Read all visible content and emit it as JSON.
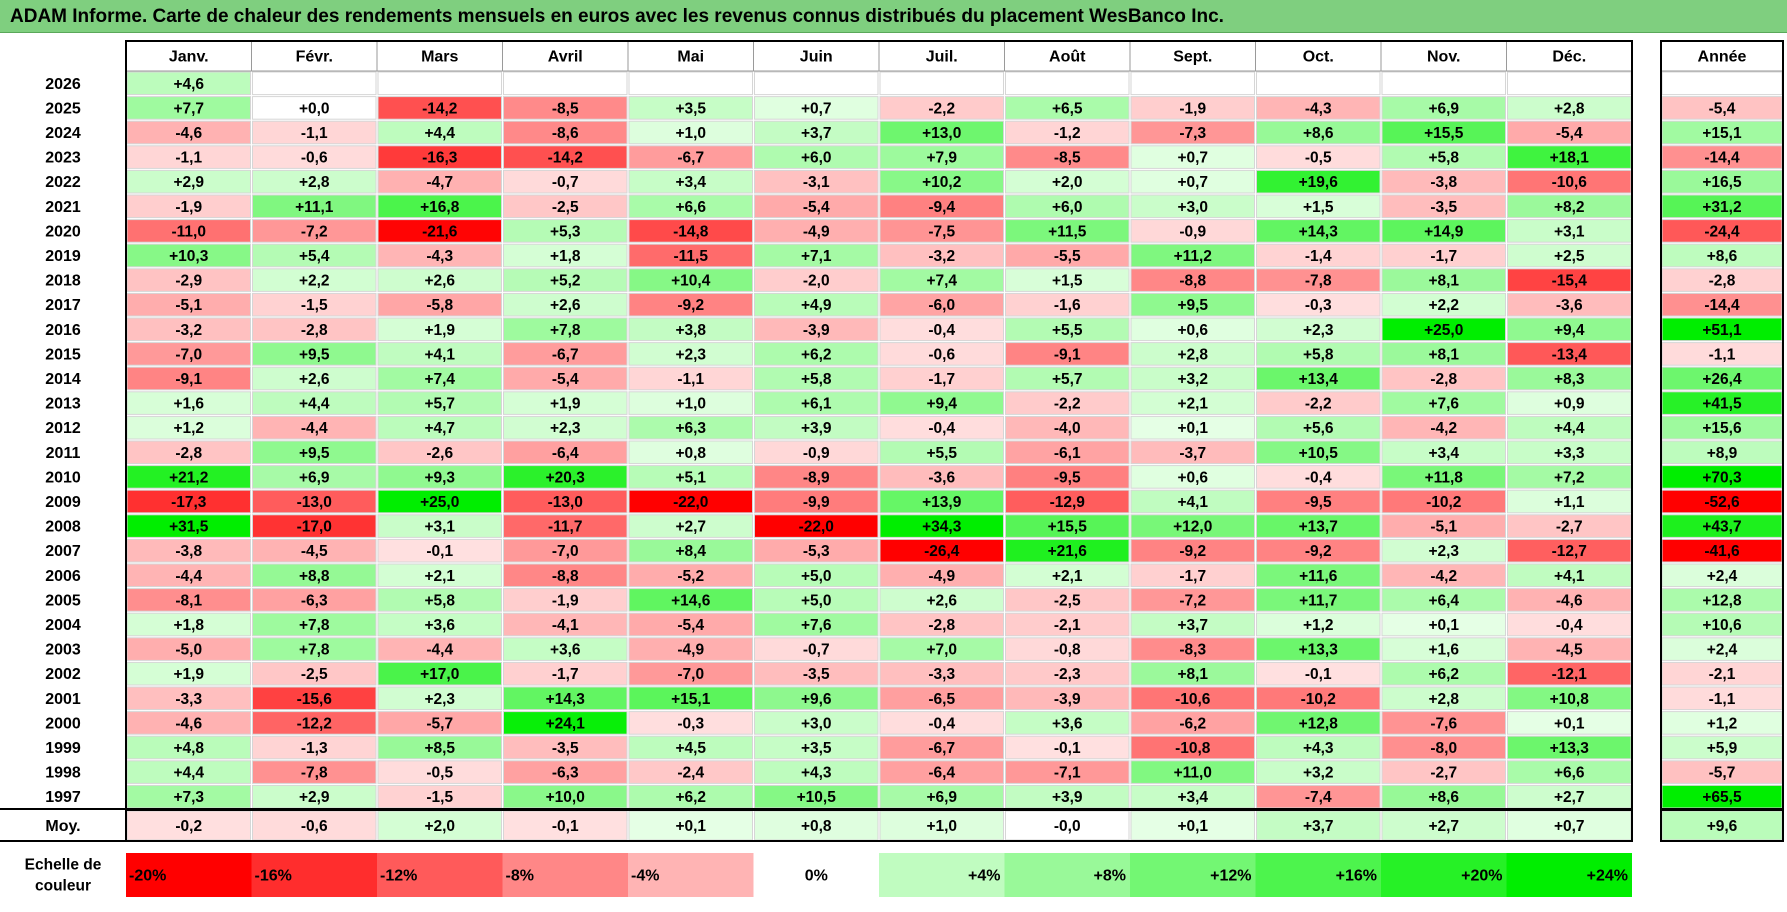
{
  "title": "ADAM Informe. Carte de chaleur des rendements mensuels en euros avec les revenus connus distribués du placement WesBanco Inc.",
  "colors": {
    "title_bar": "#7fcf7f",
    "max_red": "#ff0000",
    "max_green": "#00ee00",
    "neutral": "#ffffff"
  },
  "chart_data": {
    "type": "heatmap",
    "months": [
      "Janv.",
      "Févr.",
      "Mars",
      "Avril",
      "Mai",
      "Juin",
      "Juil.",
      "Août",
      "Sept.",
      "Oct.",
      "Nov.",
      "Déc."
    ],
    "year_header": "Année",
    "avg_label": "Moy.",
    "rows": [
      {
        "year": "2026",
        "values": [
          "+4,6",
          null,
          null,
          null,
          null,
          null,
          null,
          null,
          null,
          null,
          null,
          null
        ],
        "annual": null
      },
      {
        "year": "2025",
        "values": [
          "+7,7",
          "+0,0",
          "-14,2",
          "-8,5",
          "+3,5",
          "+0,7",
          "-2,2",
          "+6,5",
          "-1,9",
          "-4,3",
          "+6,9",
          "+2,8"
        ],
        "annual": "-5,4"
      },
      {
        "year": "2024",
        "values": [
          "-4,6",
          "-1,1",
          "+4,4",
          "-8,6",
          "+1,0",
          "+3,7",
          "+13,0",
          "-1,2",
          "-7,3",
          "+8,6",
          "+15,5",
          "-5,4"
        ],
        "annual": "+15,1"
      },
      {
        "year": "2023",
        "values": [
          "-1,1",
          "-0,6",
          "-16,3",
          "-14,2",
          "-6,7",
          "+6,0",
          "+7,9",
          "-8,5",
          "+0,7",
          "-0,5",
          "+5,8",
          "+18,1"
        ],
        "annual": "-14,4"
      },
      {
        "year": "2022",
        "values": [
          "+2,9",
          "+2,8",
          "-4,7",
          "-0,7",
          "+3,4",
          "-3,1",
          "+10,2",
          "+2,0",
          "+0,7",
          "+19,6",
          "-3,8",
          "-10,6"
        ],
        "annual": "+16,5"
      },
      {
        "year": "2021",
        "values": [
          "-1,9",
          "+11,1",
          "+16,8",
          "-2,5",
          "+6,6",
          "-5,4",
          "-9,4",
          "+6,0",
          "+3,0",
          "+1,5",
          "-3,5",
          "+8,2"
        ],
        "annual": "+31,2"
      },
      {
        "year": "2020",
        "values": [
          "-11,0",
          "-7,2",
          "-21,6",
          "+5,3",
          "-14,8",
          "-4,9",
          "-7,5",
          "+11,5",
          "-0,9",
          "+14,3",
          "+14,9",
          "+3,1"
        ],
        "annual": "-24,4"
      },
      {
        "year": "2019",
        "values": [
          "+10,3",
          "+5,4",
          "-4,3",
          "+1,8",
          "-11,5",
          "+7,1",
          "-3,2",
          "-5,5",
          "+11,2",
          "-1,4",
          "-1,7",
          "+2,5"
        ],
        "annual": "+8,6"
      },
      {
        "year": "2018",
        "values": [
          "-2,9",
          "+2,2",
          "+2,6",
          "+5,2",
          "+10,4",
          "-2,0",
          "+7,4",
          "+1,5",
          "-8,8",
          "-7,8",
          "+8,1",
          "-15,4"
        ],
        "annual": "-2,8"
      },
      {
        "year": "2017",
        "values": [
          "-5,1",
          "-1,5",
          "-5,8",
          "+2,6",
          "-9,2",
          "+4,9",
          "-6,0",
          "-1,6",
          "+9,5",
          "-0,3",
          "+2,2",
          "-3,6"
        ],
        "annual": "-14,4"
      },
      {
        "year": "2016",
        "values": [
          "-3,2",
          "-2,8",
          "+1,9",
          "+7,8",
          "+3,8",
          "-3,9",
          "-0,4",
          "+5,5",
          "+0,6",
          "+2,3",
          "+25,0",
          "+9,4"
        ],
        "annual": "+51,1"
      },
      {
        "year": "2015",
        "values": [
          "-7,0",
          "+9,5",
          "+4,1",
          "-6,7",
          "+2,3",
          "+6,2",
          "-0,6",
          "-9,1",
          "+2,8",
          "+5,8",
          "+8,1",
          "-13,4"
        ],
        "annual": "-1,1"
      },
      {
        "year": "2014",
        "values": [
          "-9,1",
          "+2,6",
          "+7,4",
          "-5,4",
          "-1,1",
          "+5,8",
          "-1,7",
          "+5,7",
          "+3,2",
          "+13,4",
          "-2,8",
          "+8,3"
        ],
        "annual": "+26,4"
      },
      {
        "year": "2013",
        "values": [
          "+1,6",
          "+4,4",
          "+5,7",
          "+1,9",
          "+1,0",
          "+6,1",
          "+9,4",
          "-2,2",
          "+2,1",
          "-2,2",
          "+7,6",
          "+0,9"
        ],
        "annual": "+41,5"
      },
      {
        "year": "2012",
        "values": [
          "+1,2",
          "-4,4",
          "+4,7",
          "+2,3",
          "+6,3",
          "+3,9",
          "-0,4",
          "-4,0",
          "+0,1",
          "+5,6",
          "-4,2",
          "+4,4"
        ],
        "annual": "+15,6"
      },
      {
        "year": "2011",
        "values": [
          "-2,8",
          "+9,5",
          "-2,6",
          "-6,4",
          "+0,8",
          "-0,9",
          "+5,5",
          "-6,1",
          "-3,7",
          "+10,5",
          "+3,4",
          "+3,3"
        ],
        "annual": "+8,9"
      },
      {
        "year": "2010",
        "values": [
          "+21,2",
          "+6,9",
          "+9,3",
          "+20,3",
          "+5,1",
          "-8,9",
          "-3,6",
          "-9,5",
          "+0,6",
          "-0,4",
          "+11,8",
          "+7,2"
        ],
        "annual": "+70,3"
      },
      {
        "year": "2009",
        "values": [
          "-17,3",
          "-13,0",
          "+25,0",
          "-13,0",
          "-22,0",
          "-9,9",
          "+13,9",
          "-12,9",
          "+4,1",
          "-9,5",
          "-10,2",
          "+1,1"
        ],
        "annual": "-52,6"
      },
      {
        "year": "2008",
        "values": [
          "+31,5",
          "-17,0",
          "+3,1",
          "-11,7",
          "+2,7",
          "-22,0",
          "+34,3",
          "+15,5",
          "+12,0",
          "+13,7",
          "-5,1",
          "-2,7"
        ],
        "annual": "+43,7"
      },
      {
        "year": "2007",
        "values": [
          "-3,8",
          "-4,5",
          "-0,1",
          "-7,0",
          "+8,4",
          "-5,3",
          "-26,4",
          "+21,6",
          "-9,2",
          "-9,2",
          "+2,3",
          "-12,7"
        ],
        "annual": "-41,6"
      },
      {
        "year": "2006",
        "values": [
          "-4,4",
          "+8,8",
          "+2,1",
          "-8,8",
          "-5,2",
          "+5,0",
          "-4,9",
          "+2,1",
          "-1,7",
          "+11,6",
          "-4,2",
          "+4,1"
        ],
        "annual": "+2,4"
      },
      {
        "year": "2005",
        "values": [
          "-8,1",
          "-6,3",
          "+5,8",
          "-1,9",
          "+14,6",
          "+5,0",
          "+2,6",
          "-2,5",
          "-7,2",
          "+11,7",
          "+6,4",
          "-4,6"
        ],
        "annual": "+12,8"
      },
      {
        "year": "2004",
        "values": [
          "+1,8",
          "+7,8",
          "+3,6",
          "-4,1",
          "-5,4",
          "+7,6",
          "-2,8",
          "-2,1",
          "+3,7",
          "+1,2",
          "+0,1",
          "-0,4"
        ],
        "annual": "+10,6"
      },
      {
        "year": "2003",
        "values": [
          "-5,0",
          "+7,8",
          "-4,4",
          "+3,6",
          "-4,9",
          "-0,7",
          "+7,0",
          "-0,8",
          "-8,3",
          "+13,3",
          "+1,6",
          "-4,5"
        ],
        "annual": "+2,4"
      },
      {
        "year": "2002",
        "values": [
          "+1,9",
          "-2,5",
          "+17,0",
          "-1,7",
          "-7,0",
          "-3,5",
          "-3,3",
          "-2,3",
          "+8,1",
          "-0,1",
          "+6,2",
          "-12,1"
        ],
        "annual": "-2,1"
      },
      {
        "year": "2001",
        "values": [
          "-3,3",
          "-15,6",
          "+2,3",
          "+14,3",
          "+15,1",
          "+9,6",
          "-6,5",
          "-3,9",
          "-10,6",
          "-10,2",
          "+2,8",
          "+10,8"
        ],
        "annual": "-1,1"
      },
      {
        "year": "2000",
        "values": [
          "-4,6",
          "-12,2",
          "-5,7",
          "+24,1",
          "-0,3",
          "+3,0",
          "-0,4",
          "+3,6",
          "-6,2",
          "+12,8",
          "-7,6",
          "+0,1"
        ],
        "annual": "+1,2"
      },
      {
        "year": "1999",
        "values": [
          "+4,8",
          "-1,3",
          "+8,5",
          "-3,5",
          "+4,5",
          "+3,5",
          "-6,7",
          "-0,1",
          "-10,8",
          "+4,3",
          "-8,0",
          "+13,3"
        ],
        "annual": "+5,9"
      },
      {
        "year": "1998",
        "values": [
          "+4,4",
          "-7,8",
          "-0,5",
          "-6,3",
          "-2,4",
          "+4,3",
          "-6,4",
          "-7,1",
          "+11,0",
          "+3,2",
          "-2,7",
          "+6,6"
        ],
        "annual": "-5,7"
      },
      {
        "year": "1997",
        "values": [
          "+7,3",
          "+2,9",
          "-1,5",
          "+10,0",
          "+6,2",
          "+10,5",
          "+6,9",
          "+3,9",
          "+3,4",
          "-7,4",
          "+8,6",
          "+2,7"
        ],
        "annual": "+65,5"
      }
    ],
    "averages": [
      "-0,2",
      "-0,6",
      "+2,0",
      "-0,1",
      "+0,1",
      "+0,8",
      "+1,0",
      "-0,0",
      "+0,1",
      "+3,7",
      "+2,7",
      "+0,7"
    ],
    "average_annual": "+9,6",
    "scale_label": "Echelle de couleur",
    "scale": [
      {
        "label": "-20%",
        "value": -20
      },
      {
        "label": "-16%",
        "value": -16
      },
      {
        "label": "-12%",
        "value": -12
      },
      {
        "label": "-8%",
        "value": -8
      },
      {
        "label": "-4%",
        "value": -4
      },
      {
        "label": "0%",
        "value": 0
      },
      {
        "label": "+4%",
        "value": 4
      },
      {
        "label": "+8%",
        "value": 8
      },
      {
        "label": "+12%",
        "value": 12
      },
      {
        "label": "+16%",
        "value": 16
      },
      {
        "label": "+20%",
        "value": 20
      },
      {
        "label": "+24%",
        "value": 24
      }
    ]
  }
}
